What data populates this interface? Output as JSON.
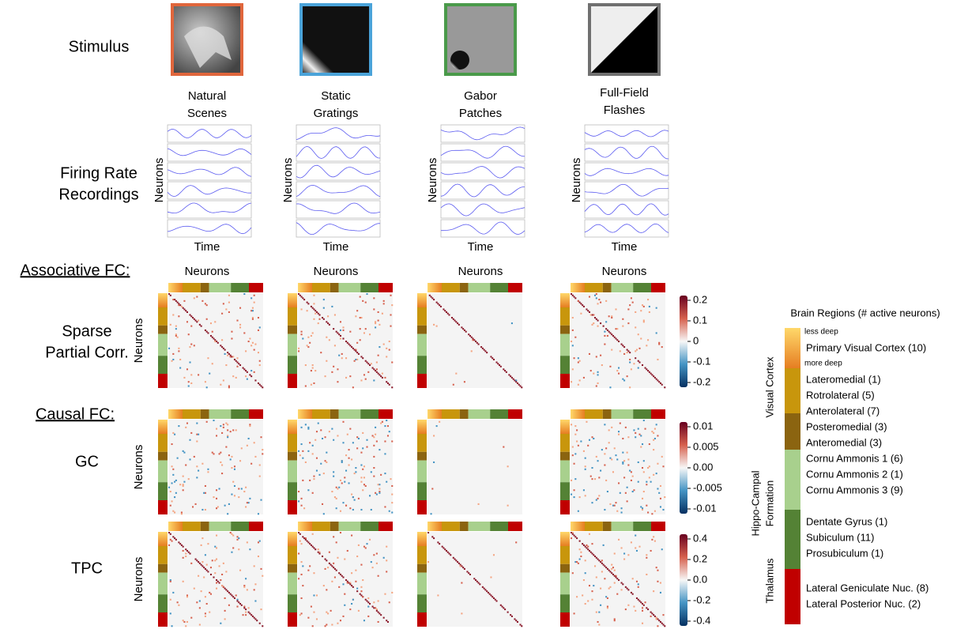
{
  "rows": {
    "stimulus": [
      "Stimulus"
    ],
    "firing": [
      "Firing Rate",
      "Recordings"
    ]
  },
  "stimuli": [
    {
      "name": [
        "Natural",
        "Scenes"
      ],
      "color": "#e0663c"
    },
    {
      "name": [
        "Static",
        "Gratings"
      ],
      "color": "#4aa3d9"
    },
    {
      "name": [
        "Gabor",
        "Patches"
      ],
      "color": "#4a9a4a"
    },
    {
      "name": [
        "Full-Field",
        "Flashes"
      ],
      "color": "#707070"
    }
  ],
  "axis_labels": {
    "neurons": "Neurons",
    "time": "Time"
  },
  "sections": {
    "associative": "Associative FC:",
    "causal": "Causal FC:"
  },
  "methods": [
    {
      "name": [
        "Sparse",
        "Partial Corr."
      ],
      "colorbar_ticks": [
        "0.2",
        "0.1",
        "0",
        "-0.1",
        "-0.2"
      ]
    },
    {
      "name": [
        "GC"
      ],
      "colorbar_ticks": [
        "0.01",
        "0.005",
        "0.00",
        "-0.005",
        "-0.01"
      ]
    },
    {
      "name": [
        "TPC"
      ],
      "colorbar_ticks": [
        "0.4",
        "0.2",
        "0.0",
        "-0.2",
        "-0.4"
      ]
    }
  ],
  "legend": {
    "title": "Brain Regions (# active neurons)",
    "depth_top": "less deep",
    "depth_bottom": "more deep",
    "groups": [
      {
        "name": [
          "Visual Cortex"
        ],
        "regions": [
          "Primary Visual Cortex (10)",
          "Lateromedial (1)",
          "Rotrolateral (5)",
          "Anterolateral (7)",
          "Posteromedial (3)",
          "Anteromedial (3)"
        ]
      },
      {
        "name": [
          "Hippo-Campal",
          "Formation"
        ],
        "regions": [
          "Cornu Ammonis 1 (6)",
          "Cornu Ammonis 2 (1)",
          "Cornu Ammonis 3 (9)",
          "Dentate Gyrus (1)",
          "Subiculum (11)",
          "Prosubiculum (1)"
        ]
      },
      {
        "name": [
          "Thalamus"
        ],
        "regions": [
          "Lateral Geniculate Nuc. (8)",
          "Lateral Posterior Nuc. (2)"
        ]
      }
    ]
  }
}
